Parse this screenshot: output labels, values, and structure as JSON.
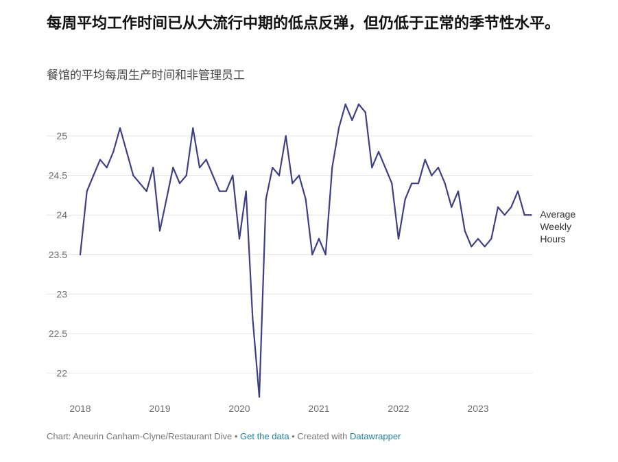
{
  "title": "每周平均工作时间已从大流行中期的低点反弹，但仍低于正常的季节性水平。",
  "subtitle": "餐馆的平均每周生产时间和非管理员工",
  "chart_data": {
    "type": "line",
    "title": "每周平均工作时间已从大流行中期的低点反弹，但仍低于正常的季节性水平。",
    "subtitle": "餐馆的平均每周生产时间和非管理员工",
    "xlabel": "",
    "ylabel": "",
    "ylim": [
      21.9,
      25.5
    ],
    "xlim": [
      2018.0,
      2023.75
    ],
    "yticks": [
      {
        "value": 22,
        "label": "22"
      },
      {
        "value": 22.5,
        "label": "22.5"
      },
      {
        "value": 23,
        "label": "23"
      },
      {
        "value": 23.5,
        "label": "23.5"
      },
      {
        "value": 24,
        "label": "24"
      },
      {
        "value": 24.5,
        "label": "24.5"
      },
      {
        "value": 25,
        "label": "25"
      }
    ],
    "xticks": [
      {
        "value": 2018,
        "label": "2018"
      },
      {
        "value": 2019,
        "label": "2019"
      },
      {
        "value": 2020,
        "label": "2020"
      },
      {
        "value": 2021,
        "label": "2021"
      },
      {
        "value": 2022,
        "label": "2022"
      },
      {
        "value": 2023,
        "label": "2023"
      }
    ],
    "grid": true,
    "series": [
      {
        "name": "Average Weekly Hours",
        "label_lines": [
          "Average",
          "Weekly",
          "Hours"
        ],
        "color": "#3d3f85",
        "x": [
          "2018-01",
          "2018-02",
          "2018-03",
          "2018-04",
          "2018-05",
          "2018-06",
          "2018-07",
          "2018-08",
          "2018-09",
          "2018-10",
          "2018-11",
          "2018-12",
          "2019-01",
          "2019-02",
          "2019-03",
          "2019-04",
          "2019-05",
          "2019-06",
          "2019-07",
          "2019-08",
          "2019-09",
          "2019-10",
          "2019-11",
          "2019-12",
          "2020-01",
          "2020-02",
          "2020-03",
          "2020-04",
          "2020-05",
          "2020-06",
          "2020-07",
          "2020-08",
          "2020-09",
          "2020-10",
          "2020-11",
          "2020-12",
          "2021-01",
          "2021-02",
          "2021-03",
          "2021-04",
          "2021-05",
          "2021-06",
          "2021-07",
          "2021-08",
          "2021-09",
          "2021-10",
          "2021-11",
          "2021-12",
          "2022-01",
          "2022-02",
          "2022-03",
          "2022-04",
          "2022-05",
          "2022-06",
          "2022-07",
          "2022-08",
          "2022-09",
          "2022-10",
          "2022-11",
          "2022-12",
          "2023-01",
          "2023-02",
          "2023-03",
          "2023-04",
          "2023-05",
          "2023-06",
          "2023-07",
          "2023-08",
          "2023-09"
        ],
        "values": [
          23.5,
          24.3,
          24.5,
          24.7,
          24.6,
          24.8,
          25.1,
          24.8,
          24.5,
          24.4,
          24.3,
          24.6,
          23.8,
          24.2,
          24.6,
          24.4,
          24.5,
          25.1,
          24.6,
          24.7,
          24.5,
          24.3,
          24.3,
          24.5,
          23.7,
          24.3,
          22.7,
          21.7,
          24.2,
          24.6,
          24.5,
          25.0,
          24.4,
          24.5,
          24.2,
          23.5,
          23.7,
          23.5,
          24.6,
          25.1,
          25.4,
          25.2,
          25.4,
          25.3,
          24.6,
          24.8,
          24.6,
          24.4,
          23.7,
          24.2,
          24.4,
          24.4,
          24.7,
          24.5,
          24.6,
          24.4,
          24.1,
          24.3,
          23.8,
          23.6,
          23.7,
          23.6,
          23.7,
          24.1,
          24.0,
          24.1,
          24.3,
          24.0,
          24.0
        ]
      }
    ]
  },
  "footer": {
    "credit": "Chart: Aneurin Canham-Clyne/Restaurant Dive",
    "separator": " • ",
    "get_data": "Get the data",
    "created_with": "Created with",
    "datawrapper": "Datawrapper"
  }
}
